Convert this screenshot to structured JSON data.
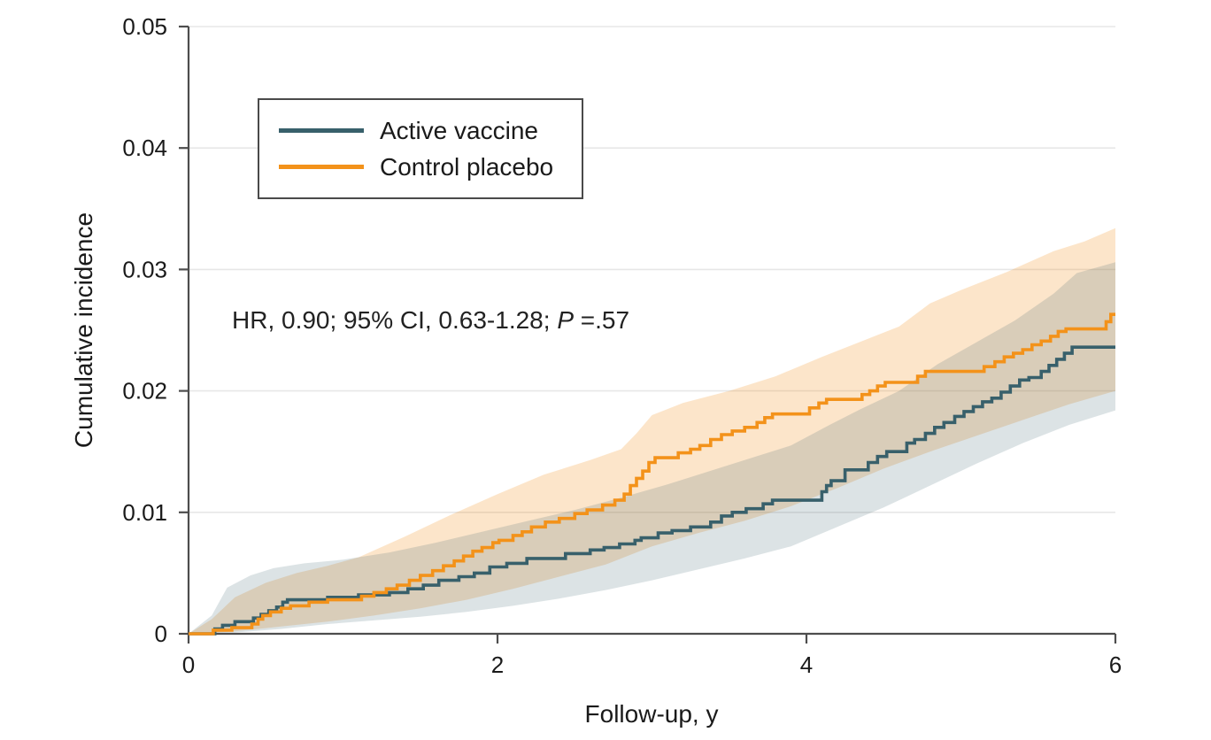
{
  "figure": {
    "y_axis_label": "Cumulative incidence",
    "x_axis_label": "Follow-up, y",
    "annotation": {
      "prefix": "HR, 0.90; 95% CI, 0.63-1.28; ",
      "p_label": "P",
      "suffix": " =.57"
    }
  },
  "legend": {
    "items": [
      {
        "label": "Active vaccine",
        "color": "#38606B"
      },
      {
        "label": "Control placebo",
        "color": "#F3921A"
      }
    ]
  },
  "colors": {
    "axis": "#4d4d4d",
    "grid": "#e7e7e7",
    "text": "#1a1a1a",
    "active_line": "#38606B",
    "control_line": "#F3921A",
    "active_band": "rgba(58,95,107,0.175)",
    "control_band": "rgba(243,146,33,0.24)"
  },
  "chart_data": {
    "type": "line",
    "variant": "kaplan-meier-step-cumulative-incidence",
    "title": "",
    "xlabel": "Follow-up, y",
    "ylabel": "Cumulative incidence",
    "xlim": [
      0,
      6
    ],
    "ylim": [
      0,
      0.05
    ],
    "xticks": [
      0,
      2,
      4,
      6
    ],
    "xtick_labels": [
      "0",
      "2",
      "4",
      "6"
    ],
    "yticks": [
      0,
      0.01,
      0.02,
      0.03,
      0.04,
      0.05
    ],
    "ytick_labels": [
      "0",
      "0.01",
      "0.02",
      "0.03",
      "0.04",
      "0.05"
    ],
    "grid": "horizontal",
    "legend_position": "upper-left-inside",
    "annotation": "HR, 0.90; 95% CI, 0.63-1.28; P =.57",
    "series": [
      {
        "name": "Active vaccine",
        "color": "#38606B",
        "band_color": "rgba(58,95,107,0.175)",
        "step_points": [
          [
            0,
            0
          ],
          [
            0.17,
            0.0004
          ],
          [
            0.22,
            0.0007
          ],
          [
            0.3,
            0.001
          ],
          [
            0.42,
            0.0013
          ],
          [
            0.47,
            0.0016
          ],
          [
            0.52,
            0.0019
          ],
          [
            0.57,
            0.0022
          ],
          [
            0.61,
            0.0026
          ],
          [
            0.64,
            0.0028
          ],
          [
            0.9,
            0.003
          ],
          [
            1.1,
            0.0032
          ],
          [
            1.3,
            0.0034
          ],
          [
            1.42,
            0.0037
          ],
          [
            1.52,
            0.004
          ],
          [
            1.62,
            0.0044
          ],
          [
            1.75,
            0.0047
          ],
          [
            1.85,
            0.005
          ],
          [
            1.95,
            0.0055
          ],
          [
            2.06,
            0.0058
          ],
          [
            2.19,
            0.0062
          ],
          [
            2.44,
            0.0066
          ],
          [
            2.6,
            0.0069
          ],
          [
            2.69,
            0.0071
          ],
          [
            2.79,
            0.0074
          ],
          [
            2.89,
            0.0077
          ],
          [
            2.93,
            0.0079
          ],
          [
            3.04,
            0.0083
          ],
          [
            3.13,
            0.0085
          ],
          [
            3.25,
            0.0088
          ],
          [
            3.38,
            0.0092
          ],
          [
            3.45,
            0.0097
          ],
          [
            3.52,
            0.01
          ],
          [
            3.61,
            0.0103
          ],
          [
            3.72,
            0.0107
          ],
          [
            3.78,
            0.011
          ],
          [
            4.1,
            0.0117
          ],
          [
            4.13,
            0.0122
          ],
          [
            4.16,
            0.0126
          ],
          [
            4.25,
            0.0135
          ],
          [
            4.4,
            0.0141
          ],
          [
            4.46,
            0.0146
          ],
          [
            4.52,
            0.015
          ],
          [
            4.65,
            0.0157
          ],
          [
            4.7,
            0.016
          ],
          [
            4.77,
            0.0165
          ],
          [
            4.83,
            0.017
          ],
          [
            4.89,
            0.0174
          ],
          [
            4.96,
            0.0179
          ],
          [
            5.02,
            0.0183
          ],
          [
            5.08,
            0.0187
          ],
          [
            5.14,
            0.0191
          ],
          [
            5.2,
            0.0194
          ],
          [
            5.26,
            0.0199
          ],
          [
            5.32,
            0.0204
          ],
          [
            5.38,
            0.0209
          ],
          [
            5.44,
            0.0211
          ],
          [
            5.52,
            0.0216
          ],
          [
            5.57,
            0.0221
          ],
          [
            5.62,
            0.0226
          ],
          [
            5.67,
            0.0231
          ],
          [
            5.72,
            0.0236
          ],
          [
            6.0,
            0.0236
          ]
        ],
        "ci_upper": [
          [
            0,
            0
          ],
          [
            0.15,
            0.0015
          ],
          [
            0.25,
            0.0038
          ],
          [
            0.4,
            0.0048
          ],
          [
            0.55,
            0.0054
          ],
          [
            0.75,
            0.0058
          ],
          [
            1.0,
            0.0061
          ],
          [
            1.3,
            0.0067
          ],
          [
            1.6,
            0.0075
          ],
          [
            1.9,
            0.0084
          ],
          [
            2.2,
            0.0093
          ],
          [
            2.5,
            0.0102
          ],
          [
            2.8,
            0.0112
          ],
          [
            3.1,
            0.0123
          ],
          [
            3.4,
            0.0135
          ],
          [
            3.7,
            0.0147
          ],
          [
            3.9,
            0.0155
          ],
          [
            4.15,
            0.0172
          ],
          [
            4.35,
            0.0185
          ],
          [
            4.6,
            0.02
          ],
          [
            4.85,
            0.0222
          ],
          [
            5.1,
            0.024
          ],
          [
            5.35,
            0.0258
          ],
          [
            5.6,
            0.028
          ],
          [
            5.75,
            0.0297
          ],
          [
            6.0,
            0.0306
          ]
        ],
        "ci_lower": [
          [
            0,
            0
          ],
          [
            0.3,
            0.0001
          ],
          [
            0.6,
            0.0004
          ],
          [
            0.9,
            0.0008
          ],
          [
            1.2,
            0.0011
          ],
          [
            1.5,
            0.0014
          ],
          [
            1.8,
            0.0018
          ],
          [
            2.1,
            0.0023
          ],
          [
            2.4,
            0.0029
          ],
          [
            2.7,
            0.0036
          ],
          [
            3.0,
            0.0044
          ],
          [
            3.3,
            0.0053
          ],
          [
            3.6,
            0.0062
          ],
          [
            3.9,
            0.0072
          ],
          [
            4.2,
            0.0088
          ],
          [
            4.5,
            0.0104
          ],
          [
            4.8,
            0.0122
          ],
          [
            5.1,
            0.014
          ],
          [
            5.4,
            0.0157
          ],
          [
            5.7,
            0.0172
          ],
          [
            6.0,
            0.0184
          ]
        ]
      },
      {
        "name": "Control placebo",
        "color": "#F3921A",
        "band_color": "rgba(243,146,33,0.24)",
        "step_points": [
          [
            0,
            0
          ],
          [
            0.16,
            0.0003
          ],
          [
            0.28,
            0.0005
          ],
          [
            0.41,
            0.0008
          ],
          [
            0.45,
            0.0012
          ],
          [
            0.48,
            0.0015
          ],
          [
            0.53,
            0.0018
          ],
          [
            0.6,
            0.0021
          ],
          [
            0.66,
            0.0023
          ],
          [
            0.78,
            0.0026
          ],
          [
            0.9,
            0.0028
          ],
          [
            1.12,
            0.0031
          ],
          [
            1.2,
            0.0034
          ],
          [
            1.28,
            0.0037
          ],
          [
            1.35,
            0.004
          ],
          [
            1.43,
            0.0044
          ],
          [
            1.5,
            0.0048
          ],
          [
            1.58,
            0.0052
          ],
          [
            1.65,
            0.0056
          ],
          [
            1.72,
            0.006
          ],
          [
            1.78,
            0.0064
          ],
          [
            1.84,
            0.0068
          ],
          [
            1.9,
            0.0071
          ],
          [
            1.97,
            0.0075
          ],
          [
            2.01,
            0.0077
          ],
          [
            2.1,
            0.0081
          ],
          [
            2.16,
            0.0084
          ],
          [
            2.22,
            0.0088
          ],
          [
            2.31,
            0.0092
          ],
          [
            2.4,
            0.0095
          ],
          [
            2.5,
            0.0099
          ],
          [
            2.58,
            0.0102
          ],
          [
            2.68,
            0.0106
          ],
          [
            2.76,
            0.011
          ],
          [
            2.82,
            0.0115
          ],
          [
            2.86,
            0.0122
          ],
          [
            2.9,
            0.0128
          ],
          [
            2.94,
            0.0134
          ],
          [
            2.98,
            0.0141
          ],
          [
            3.02,
            0.0145
          ],
          [
            3.17,
            0.0149
          ],
          [
            3.25,
            0.0152
          ],
          [
            3.31,
            0.0155
          ],
          [
            3.38,
            0.016
          ],
          [
            3.45,
            0.0164
          ],
          [
            3.52,
            0.0167
          ],
          [
            3.6,
            0.017
          ],
          [
            3.68,
            0.0174
          ],
          [
            3.73,
            0.0178
          ],
          [
            3.78,
            0.0181
          ],
          [
            4.02,
            0.0186
          ],
          [
            4.08,
            0.019
          ],
          [
            4.13,
            0.0193
          ],
          [
            4.36,
            0.0197
          ],
          [
            4.41,
            0.02
          ],
          [
            4.46,
            0.0204
          ],
          [
            4.51,
            0.0207
          ],
          [
            4.72,
            0.0212
          ],
          [
            4.77,
            0.0216
          ],
          [
            5.15,
            0.022
          ],
          [
            5.22,
            0.0224
          ],
          [
            5.28,
            0.0228
          ],
          [
            5.34,
            0.0231
          ],
          [
            5.4,
            0.0234
          ],
          [
            5.46,
            0.0238
          ],
          [
            5.52,
            0.0241
          ],
          [
            5.58,
            0.0245
          ],
          [
            5.63,
            0.0249
          ],
          [
            5.68,
            0.0251
          ],
          [
            5.94,
            0.0257
          ],
          [
            5.97,
            0.0263
          ],
          [
            6.0,
            0.0263
          ]
        ],
        "ci_upper": [
          [
            0,
            0
          ],
          [
            0.15,
            0.0012
          ],
          [
            0.3,
            0.003
          ],
          [
            0.5,
            0.0042
          ],
          [
            0.7,
            0.005
          ],
          [
            0.9,
            0.0056
          ],
          [
            1.1,
            0.0063
          ],
          [
            1.4,
            0.008
          ],
          [
            1.7,
            0.0098
          ],
          [
            2.0,
            0.0115
          ],
          [
            2.3,
            0.0131
          ],
          [
            2.6,
            0.0143
          ],
          [
            2.8,
            0.0152
          ],
          [
            2.9,
            0.0165
          ],
          [
            3.0,
            0.018
          ],
          [
            3.2,
            0.019
          ],
          [
            3.5,
            0.02
          ],
          [
            3.8,
            0.0212
          ],
          [
            4.1,
            0.0228
          ],
          [
            4.4,
            0.0243
          ],
          [
            4.6,
            0.0253
          ],
          [
            4.8,
            0.0272
          ],
          [
            5.0,
            0.0283
          ],
          [
            5.3,
            0.0298
          ],
          [
            5.6,
            0.0315
          ],
          [
            5.8,
            0.0323
          ],
          [
            6.0,
            0.0334
          ]
        ],
        "ci_lower": [
          [
            0,
            0
          ],
          [
            0.3,
            0.0002
          ],
          [
            0.6,
            0.0006
          ],
          [
            0.9,
            0.001
          ],
          [
            1.2,
            0.0015
          ],
          [
            1.5,
            0.0021
          ],
          [
            1.8,
            0.0028
          ],
          [
            2.1,
            0.0037
          ],
          [
            2.4,
            0.0047
          ],
          [
            2.7,
            0.0057
          ],
          [
            3.0,
            0.0072
          ],
          [
            3.3,
            0.0083
          ],
          [
            3.6,
            0.0093
          ],
          [
            3.9,
            0.0105
          ],
          [
            4.2,
            0.012
          ],
          [
            4.5,
            0.0136
          ],
          [
            4.8,
            0.015
          ],
          [
            5.1,
            0.0163
          ],
          [
            5.4,
            0.0176
          ],
          [
            5.7,
            0.0189
          ],
          [
            6.0,
            0.02
          ]
        ]
      }
    ]
  }
}
